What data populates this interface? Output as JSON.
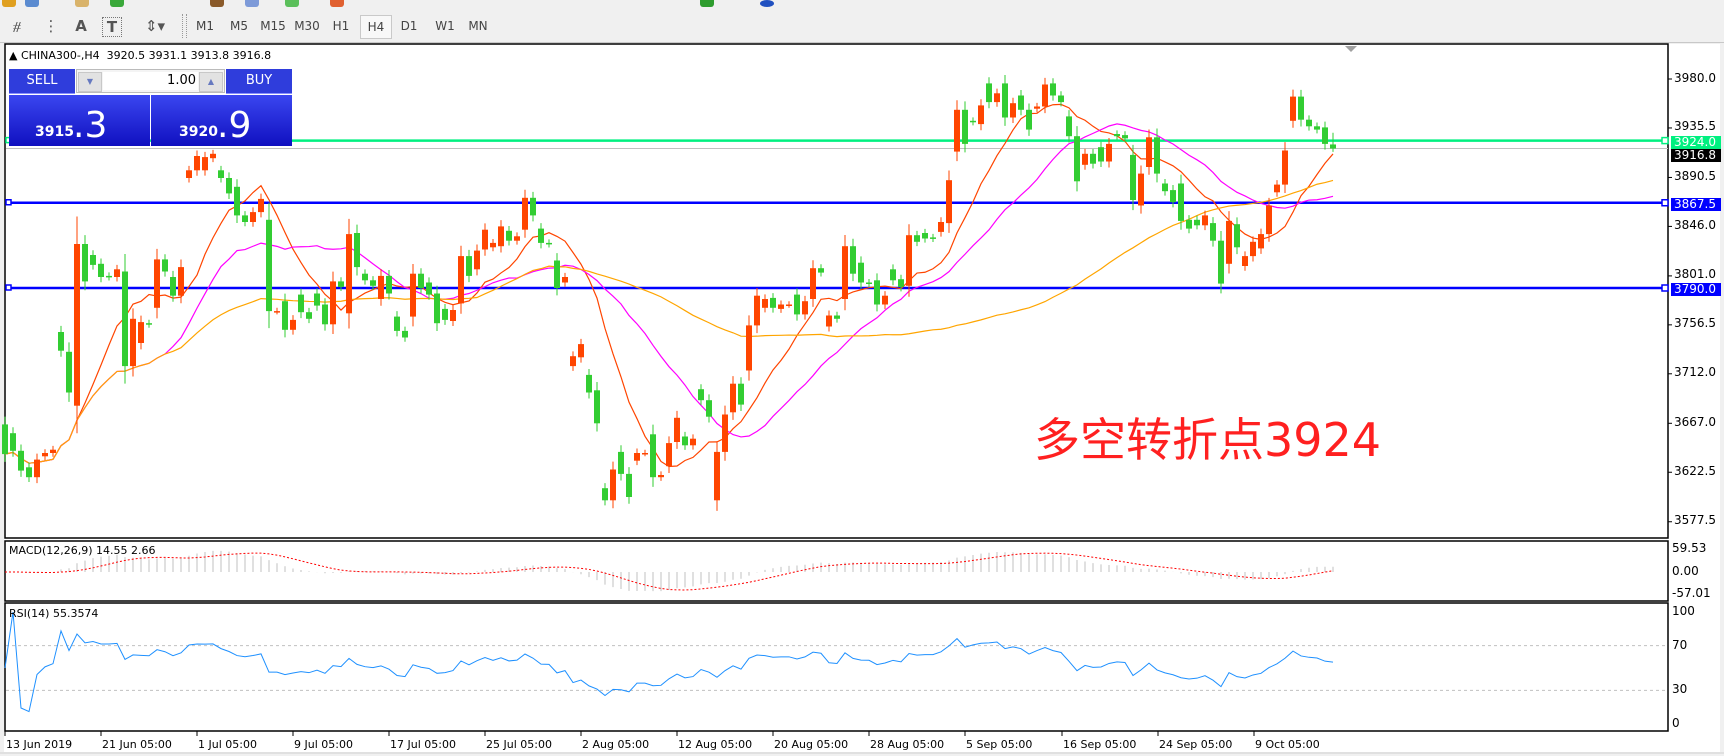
{
  "toolbar": {
    "tools": [
      "fibonacci-icon",
      "fibo-fan-icon",
      "text-icon",
      "text-label-icon",
      "arrows-icon"
    ],
    "text_tool_label": "A",
    "label_tool_label": "T",
    "timeframes": [
      "M1",
      "M5",
      "M15",
      "M30",
      "H1",
      "H4",
      "D1",
      "W1",
      "MN"
    ],
    "active_timeframe": "H4"
  },
  "chart": {
    "symbol": "CHINA300-,H4",
    "ohlc": "3920.5 3931.1 3913.8 3916.8"
  },
  "trade_panel": {
    "sell_label": "SELL",
    "buy_label": "BUY",
    "lot": "1.00",
    "sell_main": "3915",
    "sell_frac": ".3",
    "buy_main": "3920",
    "buy_frac": ".9",
    "color": "#2f3ddc"
  },
  "price_axis": {
    "ticks": [
      "3980.0",
      "3935.5",
      "3890.5",
      "3846.0",
      "3801.0",
      "3756.5",
      "3712.0",
      "3667.0",
      "3622.5",
      "3577.5"
    ]
  },
  "hlines": [
    {
      "price": 3924.0,
      "label": "3924.0",
      "color": "#00f080"
    },
    {
      "price": 3867.5,
      "label": "3867.5",
      "color": "#0000ff"
    },
    {
      "price": 3790.0,
      "label": "3790.0",
      "color": "#0000ff"
    }
  ],
  "bid_line": {
    "price": 3916.8,
    "label": "3916.8",
    "color": "#c0c0c0"
  },
  "annotation": "多空转折点3924",
  "macd": {
    "label": "MACD(12,26,9) 14.55 2.66",
    "ticks": [
      "59.53",
      "0.00",
      "-57.01"
    ],
    "histogram_color": "#c0c0c0",
    "signal_color": "#ff0000"
  },
  "rsi": {
    "label": "RSI(14) 55.3574",
    "ticks": [
      "100",
      "70",
      "30",
      "0"
    ],
    "levels": [
      70,
      30
    ],
    "color": "#1e90ff"
  },
  "time_axis": {
    "labels": [
      "13 Jun 2019",
      "21 Jun 05:00",
      "1 Jul 05:00",
      "9 Jul 05:00",
      "17 Jul 05:00",
      "25 Jul 05:00",
      "2 Aug 05:00",
      "12 Aug 05:00",
      "20 Aug 05:00",
      "28 Aug 05:00",
      "5 Sep 05:00",
      "16 Sep 05:00",
      "24 Sep 05:00",
      "9 Oct 05:00"
    ]
  },
  "chart_data": {
    "type": "candlestick",
    "fields": [
      "open",
      "close"
    ],
    "up_color": "#ff4500",
    "down_color": "#32cd32",
    "ma_colors": [
      "#ff4500",
      "#ff00ff",
      "#ffa500"
    ],
    "y_range": [
      3577.5,
      3980.0
    ],
    "last_bar": {
      "open": 3920.5,
      "high": 3931.1,
      "low": 3913.8,
      "close": 3916.8
    },
    "bars": [
      [
        3666,
        3639
      ],
      [
        3658,
        3642
      ],
      [
        3642,
        3624
      ],
      [
        3627,
        3618
      ],
      [
        3618,
        3634
      ],
      [
        3637,
        3640
      ],
      [
        3640,
        3643
      ],
      [
        3750,
        3733
      ],
      [
        3732,
        3695
      ],
      [
        3683,
        3830
      ],
      [
        3830,
        3796
      ],
      [
        3820,
        3811
      ],
      [
        3812,
        3800
      ],
      [
        3801,
        3800
      ],
      [
        3800,
        3807
      ],
      [
        3805,
        3719
      ],
      [
        3719,
        3762
      ],
      [
        3740,
        3759
      ],
      [
        3758,
        3757
      ],
      [
        3772,
        3816
      ],
      [
        3816,
        3805
      ],
      [
        3800,
        3783
      ],
      [
        3783,
        3809
      ],
      [
        3890,
        3897
      ],
      [
        3897,
        3910
      ],
      [
        3897,
        3909
      ],
      [
        3908,
        3912
      ],
      [
        3897,
        3890
      ],
      [
        3890,
        3876
      ],
      [
        3882,
        3856
      ],
      [
        3856,
        3850
      ],
      [
        3850,
        3859
      ],
      [
        3859,
        3871
      ],
      [
        3852,
        3769
      ],
      [
        3769,
        3769
      ],
      [
        3778,
        3752
      ],
      [
        3752,
        3761
      ],
      [
        3784,
        3768
      ],
      [
        3768,
        3762
      ],
      [
        3785,
        3774
      ],
      [
        3775,
        3757
      ],
      [
        3757,
        3796
      ],
      [
        3796,
        3791
      ],
      [
        3767,
        3839
      ],
      [
        3840,
        3809
      ],
      [
        3803,
        3797
      ],
      [
        3797,
        3792
      ],
      [
        3780,
        3801
      ],
      [
        3801,
        3785
      ],
      [
        3764,
        3751
      ],
      [
        3751,
        3745
      ],
      [
        3764,
        3803
      ],
      [
        3803,
        3790
      ],
      [
        3795,
        3784
      ],
      [
        3785,
        3758
      ],
      [
        3771,
        3761
      ],
      [
        3760,
        3770
      ],
      [
        3776,
        3819
      ],
      [
        3819,
        3801
      ],
      [
        3807,
        3824
      ],
      [
        3825,
        3843
      ],
      [
        3827,
        3831
      ],
      [
        3828,
        3846
      ],
      [
        3842,
        3833
      ],
      [
        3833,
        3837
      ],
      [
        3843,
        3872
      ],
      [
        3872,
        3856
      ],
      [
        3844,
        3831
      ],
      [
        3831,
        3830
      ],
      [
        3815,
        3790
      ],
      [
        3795,
        3800
      ],
      [
        3719,
        3728
      ],
      [
        3727,
        3739
      ],
      [
        3711,
        3695
      ],
      [
        3697,
        3667
      ],
      [
        3608,
        3597
      ],
      [
        3597,
        3625
      ],
      [
        3641,
        3621
      ],
      [
        3621,
        3600
      ],
      [
        3633,
        3640
      ],
      [
        3640,
        3640
      ],
      [
        3657,
        3618
      ],
      [
        3618,
        3620
      ],
      [
        3628,
        3649
      ],
      [
        3650,
        3672
      ],
      [
        3655,
        3647
      ],
      [
        3647,
        3653
      ],
      [
        3698,
        3688
      ],
      [
        3688,
        3673
      ],
      [
        3597,
        3641
      ],
      [
        3641,
        3675
      ],
      [
        3677,
        3703
      ],
      [
        3703,
        3684
      ],
      [
        3715,
        3756
      ],
      [
        3756,
        3783
      ],
      [
        3772,
        3780
      ],
      [
        3781,
        3772
      ],
      [
        3771,
        3775
      ],
      [
        3775,
        3775
      ],
      [
        3784,
        3766
      ],
      [
        3766,
        3778
      ],
      [
        3780,
        3808
      ],
      [
        3808,
        3804
      ],
      [
        3755,
        3765
      ],
      [
        3765,
        3762
      ],
      [
        3780,
        3828
      ],
      [
        3828,
        3803
      ],
      [
        3813,
        3795
      ],
      [
        3795,
        3794
      ],
      [
        3797,
        3775
      ],
      [
        3775,
        3783
      ],
      [
        3807,
        3797
      ],
      [
        3798,
        3791
      ],
      [
        3792,
        3838
      ],
      [
        3838,
        3832
      ],
      [
        3840,
        3835
      ],
      [
        3836,
        3835
      ],
      [
        3841,
        3850
      ],
      [
        3849,
        3888
      ],
      [
        3914,
        3952
      ],
      [
        3952,
        3921
      ],
      [
        3942,
        3941
      ],
      [
        3939,
        3956
      ],
      [
        3976,
        3959
      ],
      [
        3959,
        3967
      ],
      [
        3976,
        3945
      ],
      [
        3945,
        3958
      ],
      [
        3965,
        3952
      ],
      [
        3952,
        3934
      ],
      [
        3953,
        3955
      ],
      [
        3955,
        3975
      ],
      [
        3976,
        3965
      ],
      [
        3965,
        3959
      ],
      [
        3946,
        3928
      ],
      [
        3928,
        3887
      ],
      [
        3902,
        3912
      ],
      [
        3912,
        3903
      ],
      [
        3918,
        3905
      ],
      [
        3905,
        3921
      ],
      [
        3930,
        3928
      ],
      [
        3929,
        3926
      ],
      [
        3911,
        3870
      ],
      [
        3865,
        3894
      ],
      [
        3900,
        3927
      ],
      [
        3927,
        3894
      ],
      [
        3885,
        3878
      ],
      [
        3879,
        3868
      ],
      [
        3885,
        3851
      ],
      [
        3852,
        3844
      ],
      [
        3852,
        3847
      ],
      [
        3847,
        3856
      ],
      [
        3849,
        3833
      ],
      [
        3833,
        3794
      ],
      [
        3812,
        3851
      ],
      [
        3848,
        3827
      ],
      [
        3810,
        3819
      ],
      [
        3819,
        3832
      ],
      [
        3826,
        3839
      ],
      [
        3839,
        3865
      ],
      [
        3877,
        3884
      ],
      [
        3884,
        3915
      ],
      [
        3942,
        3964
      ],
      [
        3964,
        3943
      ],
      [
        3943,
        3937
      ],
      [
        3937,
        3934
      ],
      [
        3936,
        3921
      ],
      [
        3920.5,
        3916.8
      ]
    ]
  }
}
